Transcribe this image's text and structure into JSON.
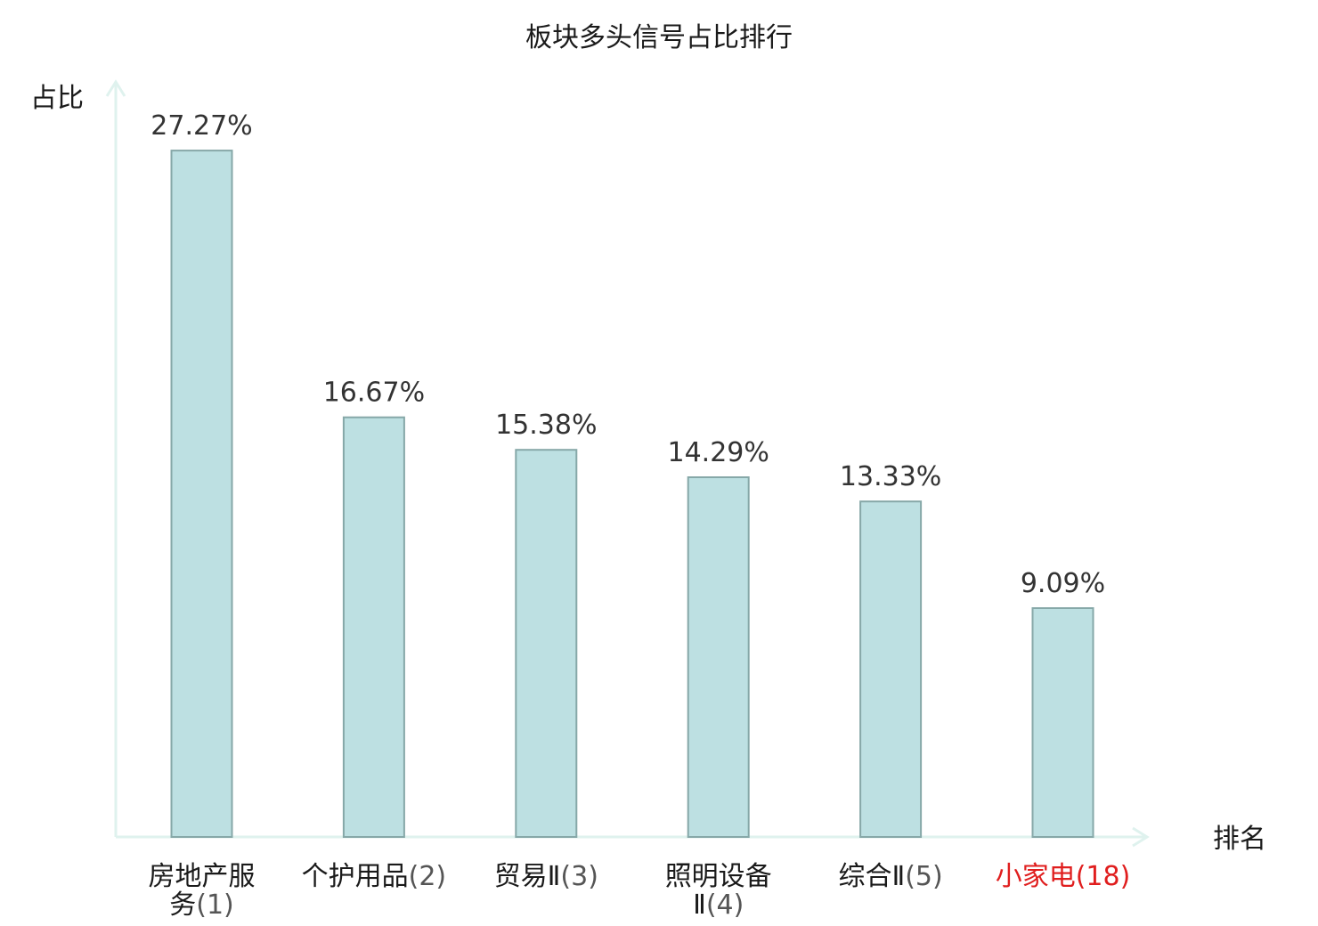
{
  "colors": {
    "bar_fill": "#bde0e2",
    "bar_stroke": "#86a8a8",
    "axis": "#dff2ee",
    "text": "#1a1a1a",
    "value_text": "#333333",
    "highlight": "#e01e1e"
  },
  "chart_data": {
    "type": "bar",
    "title": "板块多头信号占比排行",
    "ylabel": "占比",
    "xlabel": "排名",
    "ylim": [
      0,
      30
    ],
    "grid": false,
    "legend": "none",
    "categories": [
      {
        "name": "房地产服务",
        "rank": "(1)",
        "highlight": false
      },
      {
        "name": "个护用品",
        "rank": "(2)",
        "highlight": false
      },
      {
        "name": "贸易Ⅱ",
        "rank": "(3)",
        "highlight": false
      },
      {
        "name": "照明设备Ⅱ",
        "rank": "(4)",
        "highlight": false
      },
      {
        "name": "综合Ⅱ",
        "rank": "(5)",
        "highlight": false
      },
      {
        "name": "小家电",
        "rank": "(18)",
        "highlight": true
      }
    ],
    "values": [
      27.27,
      16.67,
      15.38,
      14.29,
      13.33,
      9.09
    ],
    "value_labels": [
      "27.27%",
      "16.67%",
      "15.38%",
      "14.29%",
      "13.33%",
      "9.09%"
    ]
  }
}
